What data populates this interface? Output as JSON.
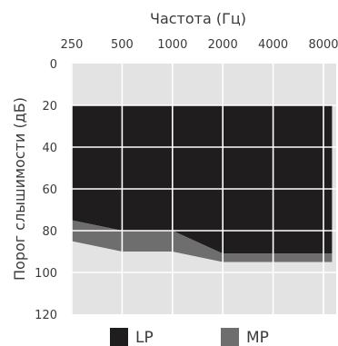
{
  "chart_data": {
    "type": "area",
    "title": "",
    "xlabel": "Частота (Гц)",
    "ylabel": "Порог слышимости (дБ)",
    "x_scale": "log",
    "x_ticks": [
      250,
      500,
      1000,
      2000,
      4000,
      8000
    ],
    "y_ticks": [
      0,
      20,
      40,
      60,
      80,
      100,
      120
    ],
    "ylim": [
      0,
      120
    ],
    "y_inverted": true,
    "grid": true,
    "legend_position": "bottom",
    "background_color": "#e3e3e3",
    "series": [
      {
        "name": "LP",
        "color": "#1f1d1e",
        "x": [
          250,
          500,
          1000,
          2000,
          9000
        ],
        "lower": [
          20,
          20,
          20,
          20,
          20
        ],
        "upper": [
          75,
          80,
          80,
          91,
          91
        ]
      },
      {
        "name": "MP",
        "color": "#6e6e6e",
        "x": [
          250,
          500,
          1000,
          2000,
          9000
        ],
        "lower": [
          75,
          80,
          80,
          91,
          91
        ],
        "upper": [
          85,
          90,
          90,
          95,
          95
        ]
      }
    ]
  }
}
